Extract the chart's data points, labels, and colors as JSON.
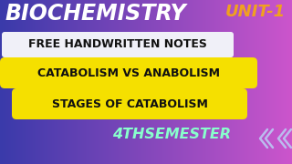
{
  "bg_left": "#3a3aaa",
  "bg_right": "#cc55cc",
  "title_biochemistry": "BIOCHEMISTRY",
  "title_unit": "UNIT-1",
  "line1_text": "FREE HANDWRITTEN NOTES",
  "line2_text": "CATABOLISM VS ANABOLISM",
  "line3_text": "STAGES OF CATABOLISM",
  "bottom_text": "4THSEMESTER",
  "biochemistry_color": "#ffffff",
  "unit_color": "#f0a020",
  "line1_bg": "#f0f0f8",
  "line1_fg": "#111111",
  "line2_bg": "#f5e000",
  "line2_fg": "#111111",
  "line3_bg": "#f5e000",
  "line3_fg": "#111111",
  "bottom_color": "#88ffcc",
  "arrow_color": "#bbbbee",
  "figw": 3.2,
  "figh": 1.8,
  "dpi": 100
}
